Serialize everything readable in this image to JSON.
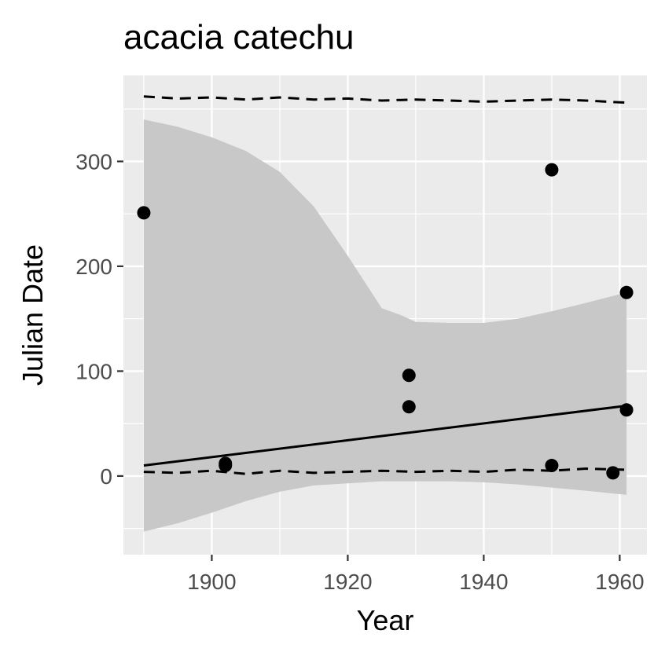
{
  "chart_data": {
    "type": "scatter",
    "title": "acacia catechu",
    "xlabel": "Year",
    "ylabel": "Julian Date",
    "xlim": [
      1887,
      1964
    ],
    "ylim": [
      -75,
      382
    ],
    "xticks": [
      1900,
      1920,
      1940,
      1960
    ],
    "yticks": [
      0,
      100,
      200,
      300
    ],
    "grid": true,
    "background": "#ebebeb",
    "points": [
      {
        "x": 1890,
        "y": 251
      },
      {
        "x": 1902,
        "y": 12
      },
      {
        "x": 1902,
        "y": 10
      },
      {
        "x": 1929,
        "y": 96
      },
      {
        "x": 1929,
        "y": 66
      },
      {
        "x": 1950,
        "y": 292
      },
      {
        "x": 1950,
        "y": 10
      },
      {
        "x": 1959,
        "y": 3
      },
      {
        "x": 1961,
        "y": 175
      },
      {
        "x": 1961,
        "y": 63
      }
    ],
    "trend_line": {
      "x": [
        1890,
        1961
      ],
      "y": [
        10,
        67
      ]
    },
    "confidence_band": {
      "x": [
        1890,
        1895,
        1900,
        1905,
        1910,
        1915,
        1920,
        1925,
        1928,
        1930,
        1935,
        1940,
        1945,
        1950,
        1955,
        1961
      ],
      "upper": [
        340,
        333,
        323,
        310,
        290,
        257,
        210,
        160,
        153,
        147,
        146,
        146,
        150,
        157,
        165,
        175
      ],
      "lower": [
        -53,
        -45,
        -35,
        -24,
        -15,
        -9,
        -7,
        -5,
        -5,
        -5,
        -5,
        -6,
        -8,
        -11,
        -14,
        -18
      ]
    },
    "quantile_lines": [
      {
        "x": [
          1890,
          1895,
          1900,
          1905,
          1910,
          1915,
          1920,
          1925,
          1930,
          1935,
          1940,
          1945,
          1950,
          1955,
          1961
        ],
        "y": [
          362,
          360,
          361,
          359,
          361,
          359,
          360,
          358,
          359,
          358,
          357,
          358,
          359,
          358,
          356
        ]
      },
      {
        "x": [
          1890,
          1895,
          1900,
          1905,
          1910,
          1915,
          1920,
          1925,
          1930,
          1935,
          1940,
          1945,
          1950,
          1955,
          1961
        ],
        "y": [
          4,
          3,
          5,
          2,
          5,
          3,
          4,
          5,
          4,
          5,
          4,
          6,
          5,
          7,
          6
        ]
      }
    ],
    "colors": {
      "panel": "#ebebeb",
      "grid": "#ffffff",
      "band": "#c8c8c8",
      "points": "#000000",
      "line": "#000000"
    }
  }
}
